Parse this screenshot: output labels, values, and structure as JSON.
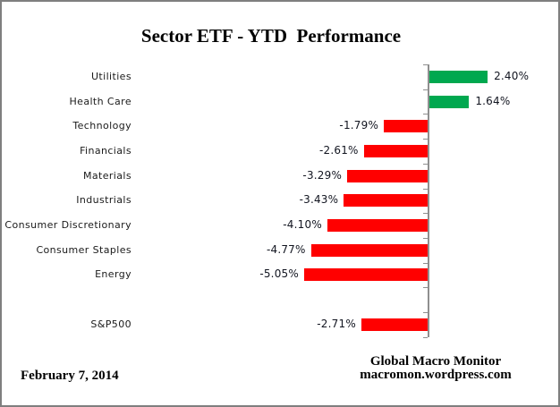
{
  "title": "Sector ETF - YTD  Performance",
  "footer": {
    "date": "February 7, 2014",
    "brand_line1": "Global Macro Monitor",
    "brand_line2": "macromon.wordpress.com"
  },
  "chart_data": {
    "type": "bar",
    "orientation": "horizontal",
    "title": "Sector ETF - YTD  Performance",
    "unit": "percent",
    "categories": [
      "Utilities",
      "Health Care",
      "Technology",
      "Financials",
      "Materials",
      "Industrials",
      "Consumer Discretionary",
      "Consumer Staples",
      "Energy",
      "S&P500"
    ],
    "values": [
      2.4,
      1.64,
      -1.79,
      -2.61,
      -3.29,
      -3.43,
      -4.1,
      -4.77,
      -5.05,
      -2.71
    ],
    "value_labels": [
      "2.40%",
      "1.64%",
      "-1.79%",
      "-2.61%",
      "-3.29%",
      "-3.43%",
      "-4.10%",
      "-4.77%",
      "-5.05%",
      "-2.71%"
    ],
    "gap_before_index": 9,
    "xlim": [
      -5.5,
      2.8
    ],
    "grid": false,
    "legend": false,
    "positive_color": "#00A84F",
    "negative_color": "#FF0000",
    "axis_color": "#8f8f8f"
  }
}
